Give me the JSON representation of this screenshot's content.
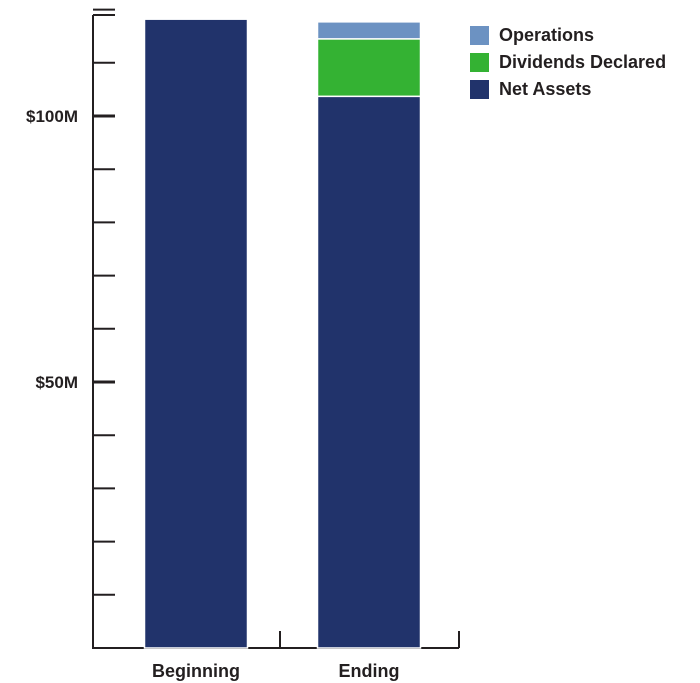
{
  "chart_data": {
    "type": "bar",
    "stacked": true,
    "title": "",
    "xlabel": "",
    "ylabel": "",
    "categories": [
      "Beginning",
      "Ending"
    ],
    "series": [
      {
        "name": "Net Assets",
        "color": "#21336b",
        "values": [
          118.2,
          103.7
        ]
      },
      {
        "name": "Dividends Declared",
        "color": "#34b233",
        "values": [
          0,
          10.8
        ]
      },
      {
        "name": "Operations",
        "color": "#6c92c2",
        "values": [
          0,
          3.2
        ]
      }
    ],
    "ylim": [
      0,
      120
    ],
    "yticks": {
      "major": [
        50,
        100
      ],
      "major_labels": [
        "$50M",
        "$100M"
      ],
      "step": 10
    },
    "legend_position": "top-right",
    "grid": false
  },
  "legend": {
    "items": [
      {
        "label": "Operations",
        "color": "#6c92c2"
      },
      {
        "label": "Dividends Declared",
        "color": "#34b233"
      },
      {
        "label": "Net Assets",
        "color": "#21336b"
      }
    ]
  }
}
